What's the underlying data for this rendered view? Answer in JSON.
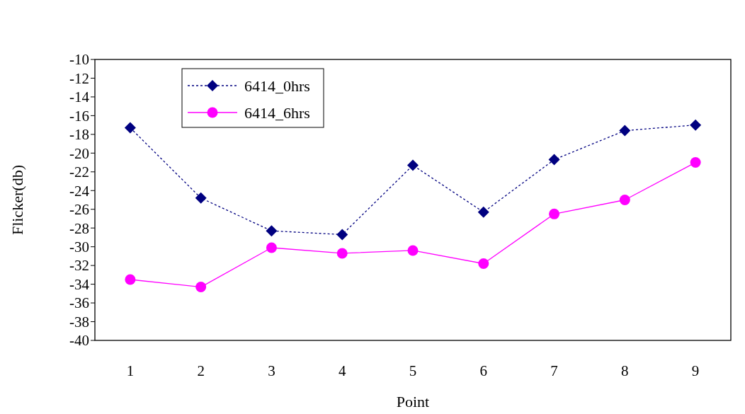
{
  "chart_data": {
    "type": "line",
    "xlabel": "Point",
    "ylabel": "Flicker(db)",
    "categories": [
      "1",
      "2",
      "3",
      "4",
      "5",
      "6",
      "7",
      "8",
      "9"
    ],
    "ylim": [
      -40,
      -10
    ],
    "yticks": [
      -40,
      -38,
      -36,
      -34,
      -32,
      -30,
      -28,
      -26,
      -24,
      -22,
      -20,
      -18,
      -16,
      -14,
      -12,
      -10
    ],
    "grid": false,
    "legend": "top left",
    "series": [
      {
        "name": "6414_0hrs",
        "color": "#000080",
        "marker": "diamond",
        "line_style": "dotted",
        "values": [
          -17.3,
          -24.8,
          -28.3,
          -28.7,
          -21.3,
          -26.3,
          -20.7,
          -17.6,
          -17.0
        ]
      },
      {
        "name": "6414_6hrs",
        "color": "#ff00ff",
        "marker": "circle",
        "line_style": "solid",
        "values": [
          -33.5,
          -34.3,
          -30.1,
          -30.7,
          -30.4,
          -31.8,
          -26.5,
          -25.0,
          -21.0
        ]
      }
    ]
  }
}
